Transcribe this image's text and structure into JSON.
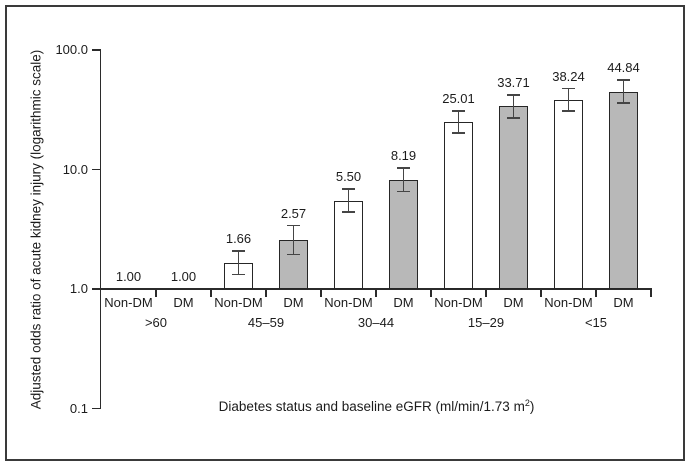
{
  "chart_data": {
    "type": "bar",
    "y_scale": "log",
    "ylabel": "Adjusted odds ratio of acute kidney injury (logarithmic scale)",
    "xlabel": "Diabetes status and baseline eGFR (ml/min/1.73 m²)",
    "xlabel_parts": {
      "prefix": "Diabetes status and baseline eGFR (ml/min/1.73 m",
      "sup": "2",
      "suffix": ")"
    },
    "ylim": [
      0.1,
      100
    ],
    "yticks": [
      {
        "value": 100,
        "label": "100.0"
      },
      {
        "value": 10,
        "label": "10.0"
      },
      {
        "value": 1,
        "label": "1.0"
      },
      {
        "value": 0.1,
        "label": "0.1"
      }
    ],
    "grid": false,
    "legend": "none (series labeled under each bar)",
    "groups": [
      {
        "egfr": ">60",
        "bars": [
          {
            "status": "Non-DM",
            "value": 1.0,
            "label": "1.00",
            "fill": "white"
          },
          {
            "status": "DM",
            "value": 1.0,
            "label": "1.00",
            "fill": "gray"
          }
        ]
      },
      {
        "egfr": "45–59",
        "bars": [
          {
            "status": "Non-DM",
            "value": 1.66,
            "label": "1.66",
            "ci_low": 1.3,
            "ci_high": 2.12,
            "fill": "white"
          },
          {
            "status": "DM",
            "value": 2.57,
            "label": "2.57",
            "ci_low": 1.92,
            "ci_high": 3.44,
            "fill": "gray"
          }
        ]
      },
      {
        "egfr": "30–44",
        "bars": [
          {
            "status": "Non-DM",
            "value": 5.5,
            "label": "5.50",
            "ci_low": 4.35,
            "ci_high": 6.95,
            "fill": "white"
          },
          {
            "status": "DM",
            "value": 8.19,
            "label": "8.19",
            "ci_low": 6.45,
            "ci_high": 10.4,
            "fill": "gray"
          }
        ]
      },
      {
        "egfr": "15–29",
        "bars": [
          {
            "status": "Non-DM",
            "value": 25.01,
            "label": "25.01",
            "ci_low": 20.0,
            "ci_high": 31.3,
            "fill": "white"
          },
          {
            "status": "DM",
            "value": 33.71,
            "label": "33.71",
            "ci_low": 26.7,
            "ci_high": 42.6,
            "fill": "gray"
          }
        ]
      },
      {
        "egfr": "<15",
        "bars": [
          {
            "status": "Non-DM",
            "value": 38.24,
            "label": "38.24",
            "ci_low": 30.3,
            "ci_high": 48.3,
            "fill": "white"
          },
          {
            "status": "DM",
            "value": 44.84,
            "label": "44.84",
            "ci_low": 35.4,
            "ci_high": 56.8,
            "fill": "gray"
          }
        ]
      }
    ],
    "colors": {
      "non_dm_fill": "#ffffff",
      "dm_fill": "#b8b8b8",
      "bar_border": "#262626",
      "error_bar": "#454545",
      "axis": "#2b2b2b",
      "text": "#1c1c1c",
      "figure_border": "#3a3a3a",
      "background": "#ffffff"
    }
  }
}
